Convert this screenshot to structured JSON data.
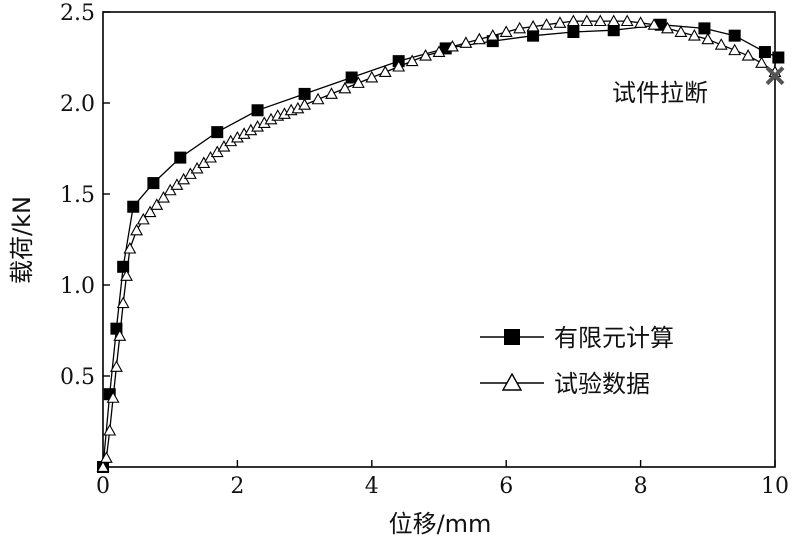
{
  "chart_data": {
    "type": "line",
    "xlabel": "位移/mm",
    "ylabel": "载荷/kN",
    "xlim": [
      0,
      10
    ],
    "ylim": [
      0,
      2.5
    ],
    "x_ticks": [
      "0",
      "2",
      "4",
      "6",
      "8",
      "10"
    ],
    "y_ticks": [
      "0.5",
      "1.0",
      "1.5",
      "2.0",
      "2.5"
    ],
    "x_tick_values": [
      0,
      2,
      4,
      6,
      8,
      10
    ],
    "y_tick_values": [
      0.5,
      1.0,
      1.5,
      2.0,
      2.5
    ],
    "grid": false,
    "legend_position": "lower-right",
    "annotation": "试件拉断",
    "fracture_point": {
      "x": 10.0,
      "y": 2.15
    },
    "series": [
      {
        "name": "有限元计算",
        "marker": "filled-square",
        "color": "#000000",
        "x": [
          0.0,
          0.1,
          0.2,
          0.3,
          0.45,
          0.75,
          1.15,
          1.7,
          2.3,
          3.0,
          3.7,
          4.4,
          5.1,
          5.8,
          6.4,
          7.0,
          7.6,
          8.3,
          8.95,
          9.4,
          9.85,
          10.05
        ],
        "y": [
          0.0,
          0.4,
          0.76,
          1.1,
          1.43,
          1.56,
          1.7,
          1.84,
          1.96,
          2.05,
          2.14,
          2.23,
          2.3,
          2.34,
          2.37,
          2.39,
          2.4,
          2.43,
          2.41,
          2.37,
          2.28,
          2.25
        ]
      },
      {
        "name": "试验数据",
        "marker": "open-triangle",
        "color": "#000000",
        "x": [
          0.0,
          0.05,
          0.1,
          0.15,
          0.2,
          0.25,
          0.3,
          0.35,
          0.4,
          0.5,
          0.6,
          0.7,
          0.8,
          0.9,
          1.0,
          1.1,
          1.2,
          1.3,
          1.4,
          1.5,
          1.6,
          1.7,
          1.8,
          1.9,
          2.0,
          2.1,
          2.2,
          2.3,
          2.4,
          2.5,
          2.6,
          2.7,
          2.8,
          2.9,
          3.0,
          3.2,
          3.4,
          3.6,
          3.8,
          4.0,
          4.2,
          4.4,
          4.6,
          4.8,
          5.0,
          5.2,
          5.4,
          5.6,
          5.8,
          6.0,
          6.2,
          6.4,
          6.6,
          6.8,
          7.0,
          7.2,
          7.4,
          7.6,
          7.8,
          8.0,
          8.2,
          8.4,
          8.6,
          8.8,
          9.0,
          9.2,
          9.4,
          9.6,
          9.8,
          10.0
        ],
        "y": [
          0.0,
          0.05,
          0.2,
          0.38,
          0.55,
          0.72,
          0.9,
          1.05,
          1.2,
          1.3,
          1.36,
          1.4,
          1.44,
          1.48,
          1.52,
          1.55,
          1.58,
          1.61,
          1.64,
          1.67,
          1.7,
          1.73,
          1.76,
          1.79,
          1.81,
          1.83,
          1.85,
          1.87,
          1.89,
          1.91,
          1.93,
          1.94,
          1.96,
          1.97,
          1.99,
          2.02,
          2.05,
          2.08,
          2.11,
          2.14,
          2.17,
          2.2,
          2.23,
          2.26,
          2.28,
          2.31,
          2.33,
          2.35,
          2.37,
          2.39,
          2.41,
          2.42,
          2.43,
          2.44,
          2.45,
          2.45,
          2.45,
          2.45,
          2.45,
          2.44,
          2.43,
          2.41,
          2.39,
          2.37,
          2.35,
          2.32,
          2.29,
          2.26,
          2.22,
          2.17
        ]
      }
    ]
  }
}
